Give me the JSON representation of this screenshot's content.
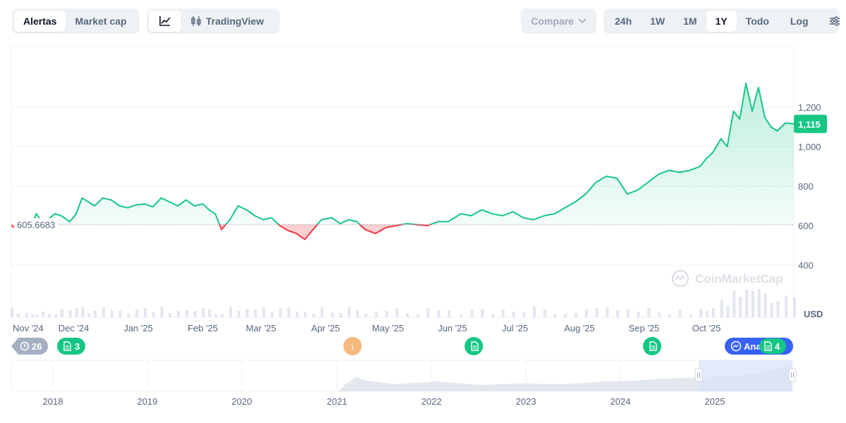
{
  "toolbar": {
    "view_tabs": [
      {
        "label": "Alertas",
        "active": true
      },
      {
        "label": "Market cap",
        "active": false
      }
    ],
    "chart_type": {
      "line_icon": "line-chart-icon",
      "tradingview_icon": "candlestick-icon",
      "tradingview_label": "TradingView"
    },
    "compare_label": "Compare",
    "ranges": [
      {
        "label": "24h",
        "active": false
      },
      {
        "label": "1W",
        "active": false
      },
      {
        "label": "1M",
        "active": false
      },
      {
        "label": "1Y",
        "active": true
      },
      {
        "label": "Todo",
        "active": false
      }
    ],
    "log_label": "Log",
    "settings_icon": "sliders-icon"
  },
  "watermark": "CoinMarketCap",
  "colors": {
    "up": "#16c784",
    "down": "#ea3943",
    "navigator_fill": "#e3e7ee",
    "navigator_window": "#dbe3f7"
  },
  "events": [
    {
      "type": "history",
      "label": "26",
      "color": "#a6b0c3"
    },
    {
      "type": "doc",
      "label": "3",
      "color": "#16c784"
    },
    {
      "type": "info",
      "label": "i",
      "color": "#f5b97f"
    },
    {
      "type": "doc",
      "label": "",
      "color": "#16c784"
    },
    {
      "type": "doc",
      "label": "",
      "color": "#16c784"
    },
    {
      "type": "analysis",
      "label": "Ana",
      "color": "#3861fb"
    },
    {
      "type": "doc",
      "label": "4",
      "color": "#16c784"
    }
  ],
  "chart_data": {
    "type": "area",
    "unit": "USD",
    "baseline": 605.6683,
    "baseline_label": "605.6683",
    "current_label": "1,115",
    "ylim": [
      350,
      1400
    ],
    "yticks": [
      400,
      600,
      800,
      1000,
      1200
    ],
    "ytick_labels": [
      "400",
      "600",
      "800",
      "1,000",
      "1,200"
    ],
    "x_labels": [
      "Nov '24",
      "Dec '24",
      "Jan '25",
      "Feb '25",
      "Mar '25",
      "Apr '25",
      "May '25",
      "Jun '25",
      "Jul '25",
      "Aug '25",
      "Sep '25",
      "Oct '25"
    ],
    "x_start": "2024-11-01",
    "x_end": "2025-11-12",
    "series": [
      {
        "x": [
          "2024-11-01",
          "2024-11-04",
          "2024-11-08",
          "2024-11-11",
          "2024-11-13",
          "2024-11-16",
          "2024-11-19",
          "2024-11-22",
          "2024-11-25",
          "2024-11-29",
          "2024-12-02",
          "2024-12-05",
          "2024-12-08",
          "2024-12-11",
          "2024-12-15",
          "2024-12-19",
          "2024-12-23",
          "2024-12-27",
          "2024-12-31",
          "2025-01-04",
          "2025-01-08",
          "2025-01-12",
          "2025-01-16",
          "2025-01-20",
          "2025-01-24",
          "2025-01-28",
          "2025-02-01",
          "2025-02-04",
          "2025-02-07",
          "2025-02-10",
          "2025-02-14",
          "2025-02-18",
          "2025-02-22",
          "2025-02-26",
          "2025-03-02",
          "2025-03-06",
          "2025-03-10",
          "2025-03-14",
          "2025-03-18",
          "2025-03-22",
          "2025-03-26",
          "2025-03-30",
          "2025-04-04",
          "2025-04-08",
          "2025-04-12",
          "2025-04-16",
          "2025-04-20",
          "2025-04-25",
          "2025-04-30",
          "2025-05-05",
          "2025-05-10",
          "2025-05-15",
          "2025-05-20",
          "2025-05-25",
          "2025-05-30",
          "2025-06-05",
          "2025-06-10",
          "2025-06-15",
          "2025-06-20",
          "2025-06-25",
          "2025-06-30",
          "2025-07-05",
          "2025-07-10",
          "2025-07-15",
          "2025-07-20",
          "2025-07-25",
          "2025-07-30",
          "2025-08-04",
          "2025-08-09",
          "2025-08-14",
          "2025-08-19",
          "2025-08-24",
          "2025-08-29",
          "2025-09-03",
          "2025-09-08",
          "2025-09-13",
          "2025-09-18",
          "2025-09-23",
          "2025-09-28",
          "2025-10-01",
          "2025-10-04",
          "2025-10-08",
          "2025-10-11",
          "2025-10-14",
          "2025-10-17",
          "2025-10-20",
          "2025-10-23",
          "2025-10-26",
          "2025-10-29",
          "2025-11-01",
          "2025-11-04",
          "2025-11-08",
          "2025-11-12"
        ],
        "y": [
          600,
          580,
          610,
          605,
          660,
          615,
          635,
          660,
          650,
          620,
          655,
          740,
          720,
          700,
          740,
          730,
          700,
          690,
          705,
          710,
          695,
          740,
          720,
          700,
          730,
          700,
          710,
          680,
          660,
          580,
          630,
          700,
          680,
          650,
          630,
          640,
          600,
          575,
          560,
          530,
          580,
          630,
          640,
          610,
          630,
          620,
          580,
          560,
          590,
          600,
          610,
          605,
          600,
          620,
          620,
          660,
          650,
          680,
          660,
          650,
          670,
          640,
          630,
          650,
          660,
          690,
          720,
          760,
          820,
          850,
          840,
          760,
          780,
          820,
          860,
          880,
          870,
          880,
          900,
          940,
          970,
          1040,
          1000,
          1180,
          1140,
          1320,
          1180,
          1300,
          1150,
          1100,
          1080,
          1120,
          1115
        ]
      }
    ],
    "navigator": {
      "x_labels": [
        "2018",
        "2019",
        "2020",
        "2021",
        "2022",
        "2023",
        "2024",
        "2025"
      ]
    }
  }
}
